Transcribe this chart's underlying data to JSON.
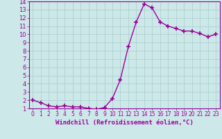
{
  "x": [
    0,
    1,
    2,
    3,
    4,
    5,
    6,
    7,
    8,
    9,
    10,
    11,
    12,
    13,
    14,
    15,
    16,
    17,
    18,
    19,
    20,
    21,
    22,
    23
  ],
  "y": [
    2.0,
    1.7,
    1.3,
    1.2,
    1.3,
    1.2,
    1.2,
    1.0,
    0.9,
    1.1,
    2.2,
    4.5,
    8.5,
    11.5,
    13.7,
    13.2,
    11.5,
    11.0,
    10.7,
    10.4,
    10.4,
    10.1,
    9.7,
    10.0
  ],
  "line_color": "#990099",
  "marker": "+",
  "marker_size": 4,
  "marker_lw": 1.2,
  "line_width": 1.0,
  "bg_color": "#cce8e8",
  "grid_color": "#aacccc",
  "ylim": [
    1,
    14
  ],
  "xlim": [
    -0.5,
    23.5
  ],
  "yticks": [
    1,
    2,
    3,
    4,
    5,
    6,
    7,
    8,
    9,
    10,
    11,
    12,
    13,
    14
  ],
  "xticks": [
    0,
    1,
    2,
    3,
    4,
    5,
    6,
    7,
    8,
    9,
    10,
    11,
    12,
    13,
    14,
    15,
    16,
    17,
    18,
    19,
    20,
    21,
    22,
    23
  ],
  "tick_color": "#990099",
  "axis_color": "#990099",
  "xlabel": "Windchill (Refroidissement éolien,°C)",
  "xlabel_color": "#990099",
  "xlabel_fontsize": 6.5,
  "tick_fontsize_x": 5.5,
  "tick_fontsize_y": 6.0
}
